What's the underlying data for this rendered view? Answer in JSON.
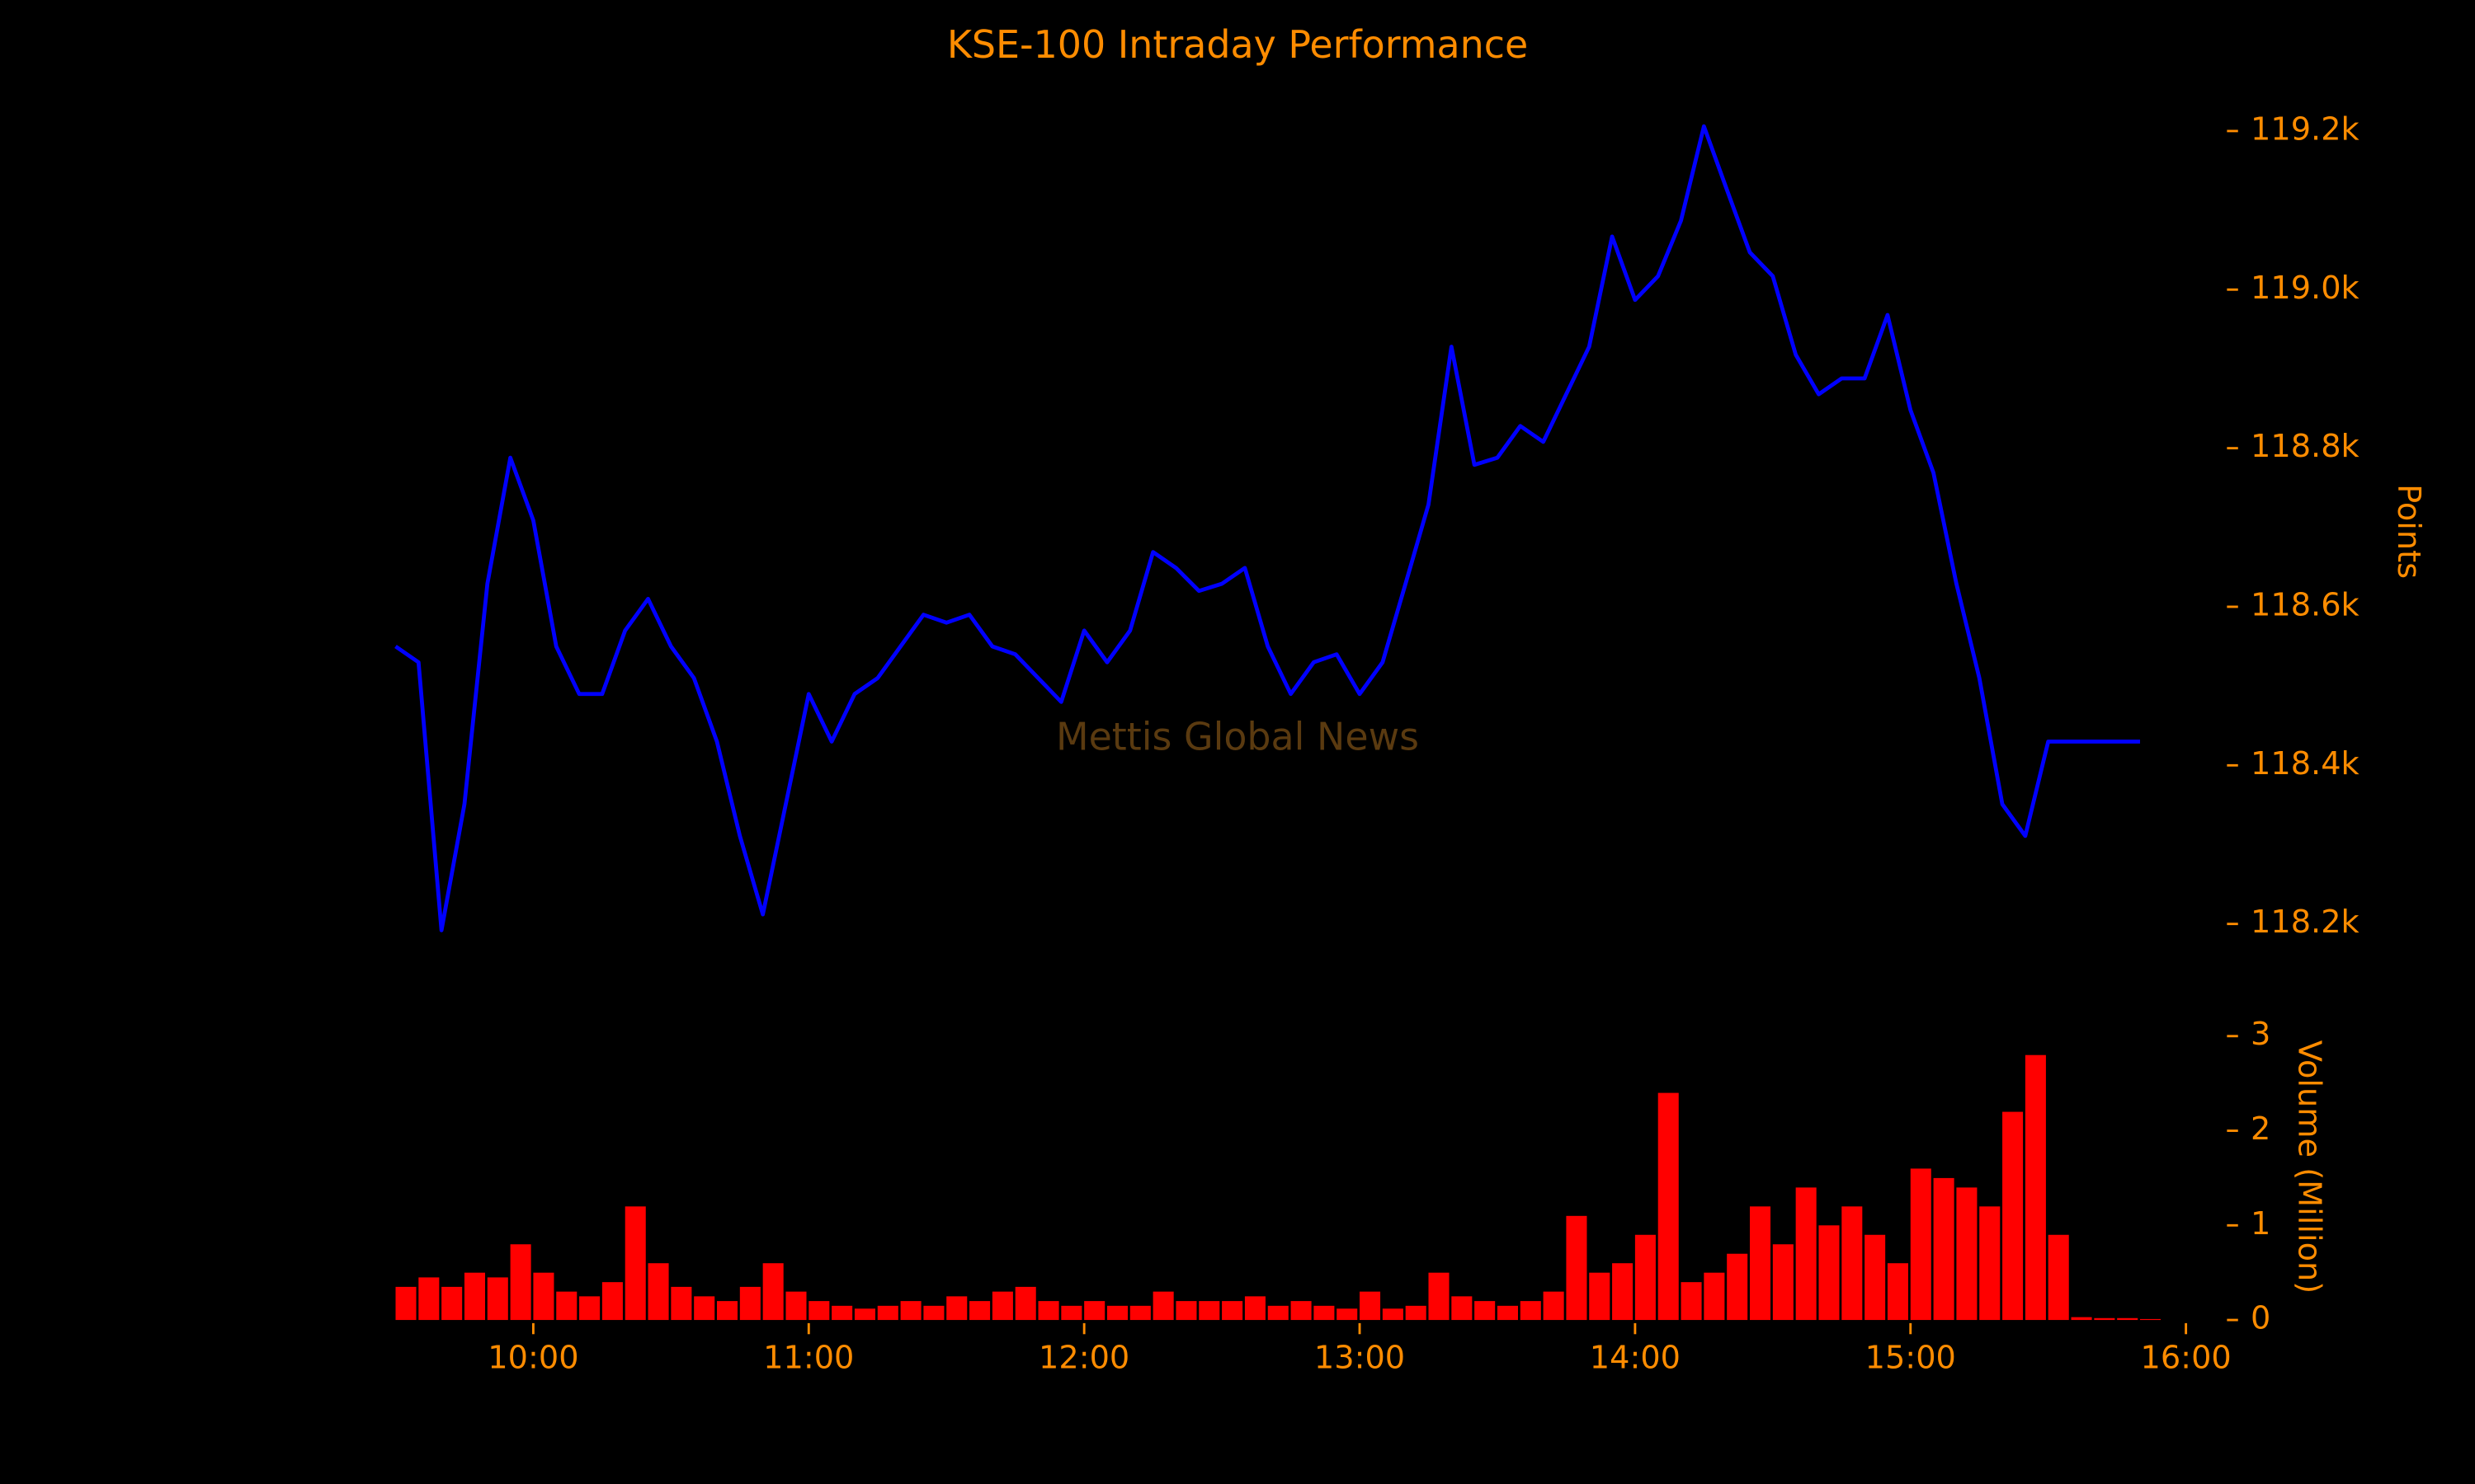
{
  "chart_data": [
    {
      "type": "line",
      "title": "KSE-100 Intraday Performance",
      "watermark": "Mettis Global News",
      "ylabel": "Points",
      "color": "#0000ff",
      "x": [
        "09:30",
        "09:35",
        "09:40",
        "09:45",
        "09:50",
        "09:55",
        "10:00",
        "10:05",
        "10:10",
        "10:15",
        "10:20",
        "10:25",
        "10:30",
        "10:35",
        "10:40",
        "10:45",
        "10:50",
        "10:55",
        "11:00",
        "11:05",
        "11:10",
        "11:15",
        "11:20",
        "11:25",
        "11:30",
        "11:35",
        "11:40",
        "11:45",
        "11:50",
        "11:55",
        "12:00",
        "12:05",
        "12:10",
        "12:15",
        "12:20",
        "12:25",
        "12:30",
        "12:35",
        "12:40",
        "12:45",
        "12:50",
        "12:55",
        "13:00",
        "13:05",
        "13:10",
        "13:15",
        "13:20",
        "13:25",
        "13:30",
        "13:35",
        "13:40",
        "13:45",
        "13:50",
        "13:55",
        "14:00",
        "14:05",
        "14:10",
        "14:15",
        "14:20",
        "14:25",
        "14:30",
        "14:35",
        "14:40",
        "14:45",
        "14:50",
        "14:55",
        "15:00",
        "15:05",
        "15:10",
        "15:15",
        "15:20",
        "15:25",
        "15:30",
        "15:35",
        "15:40",
        "15:45",
        "15:50"
      ],
      "values": [
        118550,
        118530,
        118192,
        118351,
        118629,
        118788,
        118709,
        118550,
        118490,
        118490,
        118570,
        118610,
        118550,
        118510,
        118430,
        118311,
        118212,
        118351,
        118490,
        118430,
        118490,
        118510,
        118550,
        118590,
        118580,
        118590,
        118550,
        118540,
        118510,
        118480,
        118570,
        118530,
        118570,
        118669,
        118649,
        118620,
        118629,
        118649,
        118550,
        118490,
        118530,
        118540,
        118490,
        118530,
        118629,
        118729,
        118928,
        118779,
        118788,
        118828,
        118808,
        118868,
        118928,
        119067,
        118987,
        119017,
        119087,
        119206,
        119126,
        119047,
        119017,
        118918,
        118868,
        118888,
        118888,
        118968,
        118848,
        118769,
        118629,
        118510,
        118351,
        118311,
        118430,
        118430,
        118430,
        118430,
        118430
      ],
      "xlim": [
        "09:30",
        "16:00"
      ],
      "ylim": [
        118150,
        119230
      ],
      "yticks": [
        {
          "value": 118200,
          "label": "118.2k"
        },
        {
          "value": 118400,
          "label": "118.4k"
        },
        {
          "value": 118600,
          "label": "118.6k"
        },
        {
          "value": 118800,
          "label": "118.8k"
        },
        {
          "value": 119000,
          "label": "119.0k"
        },
        {
          "value": 119200,
          "label": "119.2k"
        }
      ]
    },
    {
      "type": "bar",
      "ylabel": "Volume (Million)",
      "color": "#ff0000",
      "x": [
        "09:30",
        "09:35",
        "09:40",
        "09:45",
        "09:50",
        "09:55",
        "10:00",
        "10:05",
        "10:10",
        "10:15",
        "10:20",
        "10:25",
        "10:30",
        "10:35",
        "10:40",
        "10:45",
        "10:50",
        "10:55",
        "11:00",
        "11:05",
        "11:10",
        "11:15",
        "11:20",
        "11:25",
        "11:30",
        "11:35",
        "11:40",
        "11:45",
        "11:50",
        "11:55",
        "12:00",
        "12:05",
        "12:10",
        "12:15",
        "12:20",
        "12:25",
        "12:30",
        "12:35",
        "12:40",
        "12:45",
        "12:50",
        "12:55",
        "13:00",
        "13:05",
        "13:10",
        "13:15",
        "13:20",
        "13:25",
        "13:30",
        "13:35",
        "13:40",
        "13:45",
        "13:50",
        "13:55",
        "14:00",
        "14:05",
        "14:10",
        "14:15",
        "14:20",
        "14:25",
        "14:30",
        "14:35",
        "14:40",
        "14:45",
        "14:50",
        "14:55",
        "15:00",
        "15:05",
        "15:10",
        "15:15",
        "15:20",
        "15:25",
        "15:30",
        "15:35",
        "15:40",
        "15:45",
        "15:50"
      ],
      "values": [
        0.35,
        0.45,
        0.35,
        0.5,
        0.45,
        0.8,
        0.5,
        0.3,
        0.25,
        0.4,
        1.2,
        0.6,
        0.35,
        0.25,
        0.2,
        0.35,
        0.6,
        0.3,
        0.2,
        0.15,
        0.12,
        0.15,
        0.2,
        0.15,
        0.25,
        0.2,
        0.3,
        0.35,
        0.2,
        0.15,
        0.2,
        0.15,
        0.15,
        0.3,
        0.2,
        0.2,
        0.2,
        0.25,
        0.15,
        0.2,
        0.15,
        0.12,
        0.3,
        0.12,
        0.15,
        0.5,
        0.25,
        0.2,
        0.15,
        0.2,
        0.3,
        1.1,
        0.5,
        0.6,
        0.9,
        2.4,
        0.4,
        0.5,
        0.7,
        1.2,
        0.8,
        1.4,
        1.0,
        1.2,
        0.9,
        0.6,
        1.6,
        1.5,
        1.4,
        1.2,
        2.2,
        2.8,
        0.9,
        0.03,
        0.02,
        0.02,
        0.01
      ],
      "xlim": [
        "09:30",
        "16:00"
      ],
      "ylim": [
        0,
        3.1
      ],
      "yticks": [
        0,
        1,
        2,
        3
      ],
      "xticks": [
        "10:00",
        "11:00",
        "12:00",
        "13:00",
        "14:00",
        "15:00",
        "16:00"
      ]
    }
  ]
}
